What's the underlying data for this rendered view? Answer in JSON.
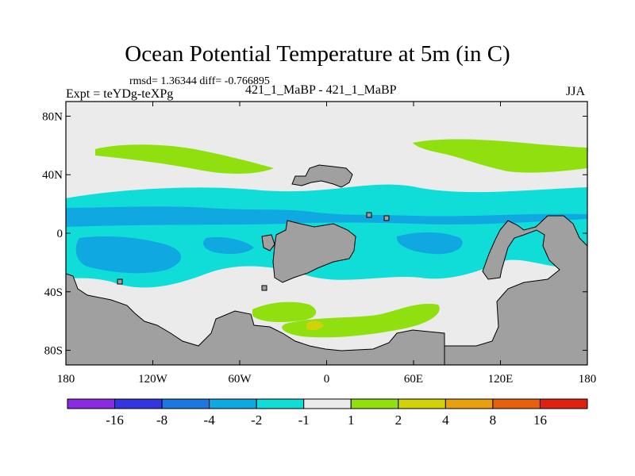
{
  "title": "Ocean Potential Temperature at 5m (in C)",
  "stats_text": "rmsd= 1.36344  diff= -0.766895",
  "left_label": "Expt = teYDg-teXPg",
  "center_label": "421_1_MaBP - 421_1_MaBP",
  "right_label": "JJA",
  "chart_data": {
    "type": "contour_map",
    "projection": "cylindrical equidistant",
    "variable": "ocean potential temperature difference at 5m",
    "units": "C",
    "lon_range": [
      -180,
      180
    ],
    "lat_range": [
      -90,
      90
    ],
    "y_ticks": [
      {
        "lat": 80,
        "label": "80N"
      },
      {
        "lat": 40,
        "label": "40N"
      },
      {
        "lat": 0,
        "label": "0"
      },
      {
        "lat": -40,
        "label": "40S"
      },
      {
        "lat": -80,
        "label": "80S"
      }
    ],
    "x_ticks": [
      {
        "lon": -180,
        "label": "180"
      },
      {
        "lon": -120,
        "label": "120W"
      },
      {
        "lon": -60,
        "label": "60W"
      },
      {
        "lon": 0,
        "label": "0"
      },
      {
        "lon": 60,
        "label": "60E"
      },
      {
        "lon": 120,
        "label": "120E"
      },
      {
        "lon": 180,
        "label": "180"
      }
    ],
    "colorbar": {
      "levels": [
        "-16",
        "-8",
        "-4",
        "-2",
        "-1",
        "1",
        "2",
        "4",
        "8",
        "16"
      ],
      "colors": [
        "#8a2be2",
        "#3535e0",
        "#1c78e0",
        "#10a8e0",
        "#10dcd8",
        "#ebebeb",
        "#90e010",
        "#d2d20a",
        "#e6a010",
        "#e66010",
        "#e02010"
      ]
    },
    "fields": {
      "ocean_background": "#ebebeb",
      "land": "#a0a0a0"
    }
  }
}
